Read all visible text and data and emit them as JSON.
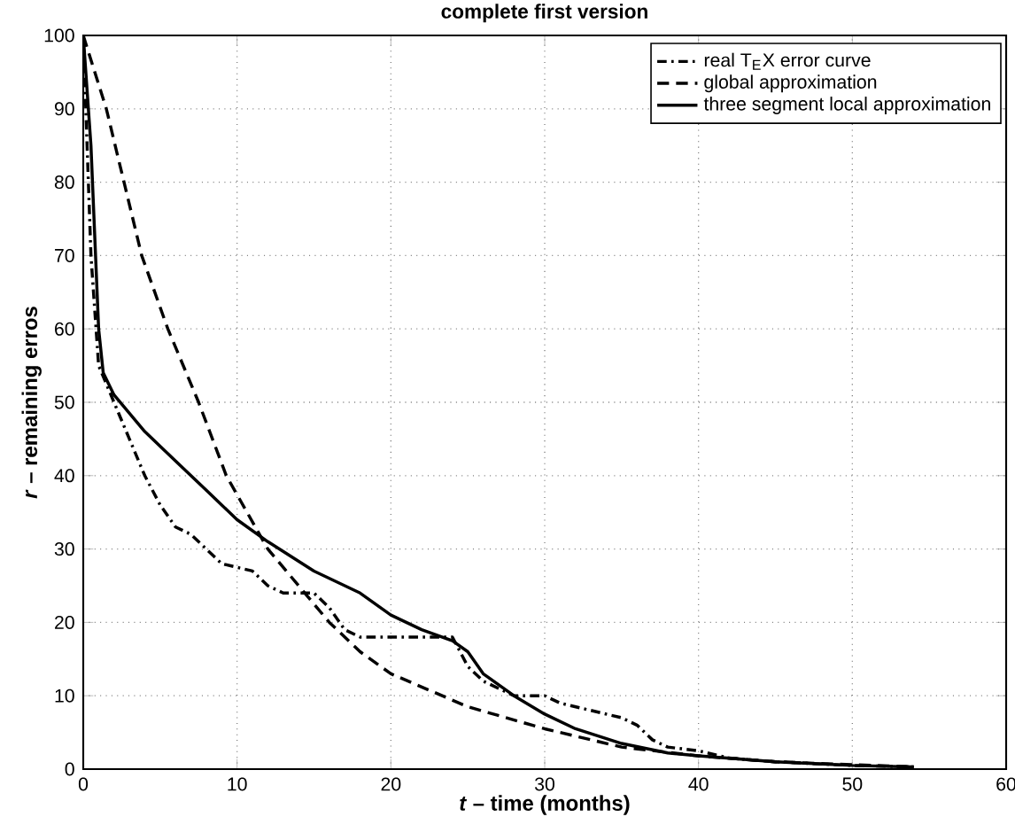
{
  "chart_data": {
    "type": "line",
    "title": "complete first version",
    "xlabel": "*t* – time (months)",
    "ylabel": "*r* – remaining erros",
    "xlim": [
      0,
      60
    ],
    "ylim": [
      0,
      100
    ],
    "xticks": [
      0,
      10,
      20,
      30,
      40,
      50,
      60
    ],
    "yticks": [
      0,
      10,
      20,
      30,
      40,
      50,
      60,
      70,
      80,
      90,
      100
    ],
    "grid": true,
    "legend": "top right",
    "marker": "none",
    "series": [
      {
        "name": "real T$_{E}$X error curve",
        "color": "#000000",
        "line_style": "dashdot",
        "x": [
          0,
          0.5,
          1,
          2,
          3,
          4,
          5,
          6,
          7,
          8,
          9,
          10,
          11,
          12,
          13,
          14,
          15,
          16,
          17,
          18,
          22,
          24,
          24.5,
          25,
          26,
          28,
          30,
          31,
          33,
          35,
          36,
          37,
          38,
          40,
          42,
          45,
          50,
          54
        ],
        "values": [
          100,
          70,
          55,
          50,
          45,
          40,
          36,
          33,
          32,
          30,
          28,
          27.5,
          27,
          25,
          24,
          24,
          24,
          22,
          19,
          18,
          18,
          18,
          16,
          14,
          12,
          10,
          10,
          9,
          8,
          7,
          6,
          4,
          3,
          2.5,
          1.5,
          1,
          0.5,
          0.3
        ]
      },
      {
        "name": "global approximation",
        "color": "#000000",
        "line_style": "dashed",
        "x": [
          0,
          1.5,
          3.8,
          5.5,
          7.5,
          9.3,
          12,
          14,
          16,
          18,
          20,
          25,
          30,
          35,
          40,
          45,
          50,
          54
        ],
        "values": [
          100,
          90,
          70,
          60,
          50,
          40,
          30,
          25,
          20,
          16,
          13,
          8.5,
          5.5,
          3,
          1.8,
          1,
          0.6,
          0.3
        ]
      },
      {
        "name": "three segment local approximation",
        "color": "#000000",
        "line_style": "solid",
        "x": [
          0,
          0.5,
          1,
          1.3,
          2,
          4,
          6,
          8,
          10,
          12,
          15,
          18,
          20,
          22,
          24,
          25,
          26,
          28,
          30,
          32,
          35,
          38,
          40,
          45,
          50,
          54
        ],
        "values": [
          100,
          85,
          60,
          54,
          51,
          46,
          42,
          38,
          34,
          31,
          27,
          24,
          21,
          19,
          17.5,
          16,
          13,
          10,
          7.5,
          5.5,
          3.5,
          2.2,
          1.8,
          1,
          0.5,
          0.3
        ]
      }
    ]
  }
}
